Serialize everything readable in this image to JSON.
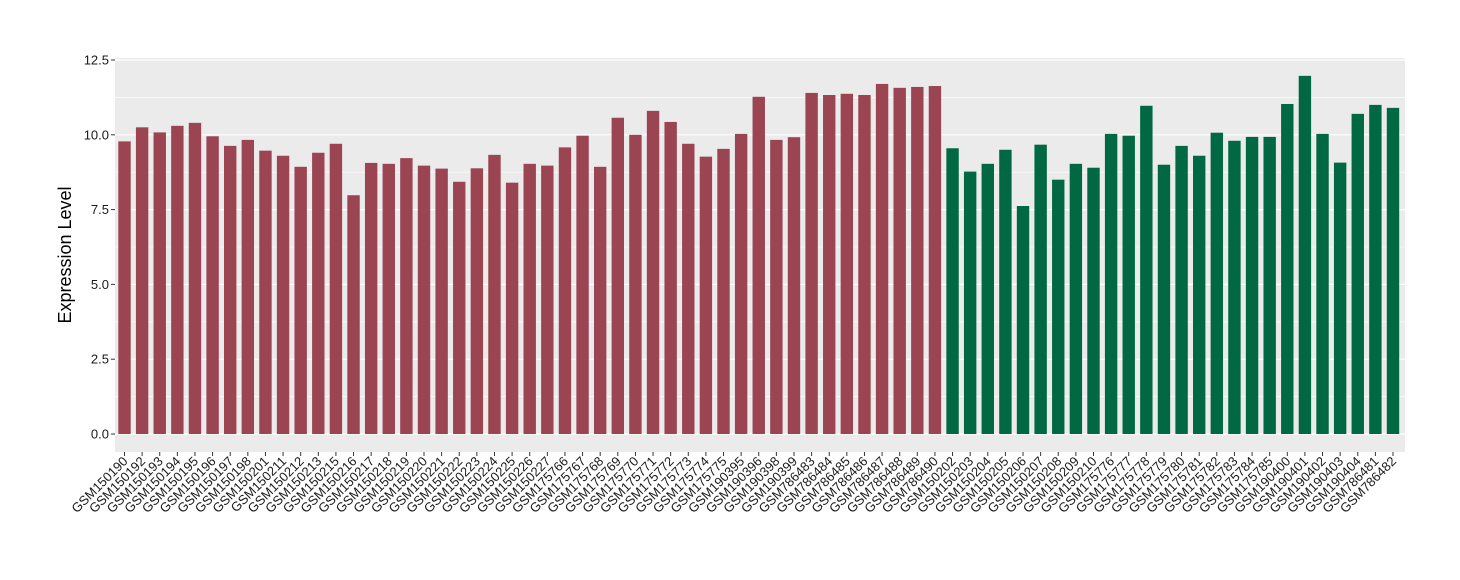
{
  "chart_data": {
    "type": "bar",
    "title": "",
    "xlabel": "",
    "ylabel": "Expression Level",
    "ylim": [
      -0.4,
      12.6
    ],
    "yticks": [
      0.0,
      2.5,
      5.0,
      7.5,
      10.0,
      12.5
    ],
    "ytick_labels": [
      "0.0",
      "2.5",
      "5.0",
      "7.5",
      "10.0",
      "12.5"
    ],
    "grid": true,
    "legend": "none",
    "colors": {
      "group1": "#9b4452",
      "group2": "#006843",
      "panel_bg": "#ebebeb",
      "grid": "#ffffff"
    },
    "categories": [
      "GSM150190",
      "GSM150192",
      "GSM150193",
      "GSM150194",
      "GSM150195",
      "GSM150196",
      "GSM150197",
      "GSM150198",
      "GSM150201",
      "GSM150211",
      "GSM150212",
      "GSM150213",
      "GSM150215",
      "GSM150216",
      "GSM150217",
      "GSM150218",
      "GSM150219",
      "GSM150220",
      "GSM150221",
      "GSM150222",
      "GSM150223",
      "GSM150224",
      "GSM150225",
      "GSM150226",
      "GSM150227",
      "GSM175766",
      "GSM175767",
      "GSM175768",
      "GSM175769",
      "GSM175770",
      "GSM175771",
      "GSM175772",
      "GSM175773",
      "GSM175774",
      "GSM175775",
      "GSM190395",
      "GSM190396",
      "GSM190398",
      "GSM190399",
      "GSM786483",
      "GSM786484",
      "GSM786485",
      "GSM786486",
      "GSM786487",
      "GSM786488",
      "GSM786489",
      "GSM786490",
      "GSM150202",
      "GSM150203",
      "GSM150204",
      "GSM150205",
      "GSM150206",
      "GSM150207",
      "GSM150208",
      "GSM150209",
      "GSM150210",
      "GSM175776",
      "GSM175777",
      "GSM175778",
      "GSM175779",
      "GSM175780",
      "GSM175781",
      "GSM175782",
      "GSM175783",
      "GSM175784",
      "GSM175785",
      "GSM190400",
      "GSM190401",
      "GSM190402",
      "GSM190403",
      "GSM190404",
      "GSM786481",
      "GSM786482"
    ],
    "values": [
      9.78,
      10.25,
      10.08,
      10.3,
      10.4,
      9.95,
      9.63,
      9.83,
      9.47,
      9.3,
      8.93,
      9.4,
      9.7,
      7.98,
      9.06,
      9.03,
      9.22,
      8.97,
      8.87,
      8.43,
      8.88,
      9.33,
      8.4,
      9.03,
      8.97,
      9.58,
      9.97,
      8.93,
      10.57,
      10.0,
      10.8,
      10.43,
      9.7,
      9.27,
      9.53,
      10.03,
      11.27,
      9.83,
      9.92,
      11.4,
      11.33,
      11.37,
      11.33,
      11.7,
      11.57,
      11.6,
      11.63,
      9.55,
      8.77,
      9.03,
      9.5,
      7.62,
      9.67,
      8.5,
      9.03,
      8.9,
      10.03,
      9.97,
      10.97,
      9.0,
      9.63,
      9.3,
      10.07,
      9.8,
      9.93,
      9.93,
      11.03,
      11.97,
      10.03,
      9.07,
      10.7,
      11.0,
      10.9
    ],
    "groups": [
      1,
      1,
      1,
      1,
      1,
      1,
      1,
      1,
      1,
      1,
      1,
      1,
      1,
      1,
      1,
      1,
      1,
      1,
      1,
      1,
      1,
      1,
      1,
      1,
      1,
      1,
      1,
      1,
      1,
      1,
      1,
      1,
      1,
      1,
      1,
      1,
      1,
      1,
      1,
      1,
      1,
      1,
      1,
      1,
      1,
      1,
      1,
      2,
      2,
      2,
      2,
      2,
      2,
      2,
      2,
      2,
      2,
      2,
      2,
      2,
      2,
      2,
      2,
      2,
      2,
      2,
      2,
      2,
      2,
      2,
      2,
      2,
      2
    ]
  }
}
